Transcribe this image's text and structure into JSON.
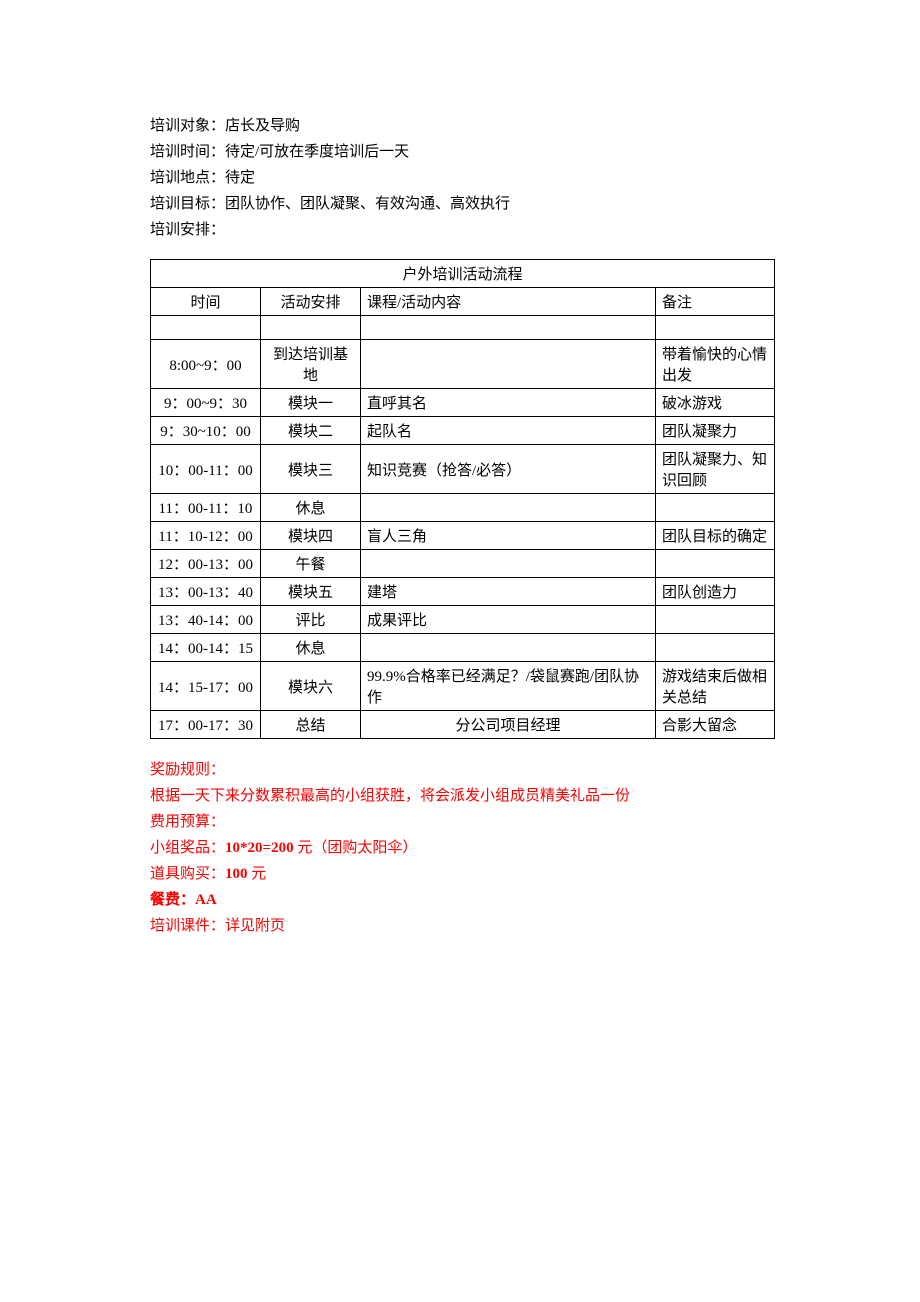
{
  "info": {
    "target_label": "培训对象：",
    "target_value": "店长及导购",
    "time_label": "培训时间：",
    "time_value": "待定/可放在季度培训后一天",
    "location_label": "培训地点：",
    "location_value": "待定",
    "goal_label": "培训目标：",
    "goal_value": "团队协作、团队凝聚、有效沟通、高效执行",
    "schedule_label": "培训安排："
  },
  "table": {
    "title": "户外培训活动流程",
    "headers": {
      "time": "时间",
      "activity": "活动安排",
      "content": "课程/活动内容",
      "remark": "备注"
    },
    "rows": [
      {
        "time": "8:00~9：00",
        "activity": "到达培训基地",
        "content": "",
        "remark": "带着愉快的心情出发"
      },
      {
        "time": "9：00~9：30",
        "activity": "模块一",
        "content": "直呼其名",
        "remark": "破冰游戏"
      },
      {
        "time": "9：30~10：00",
        "activity": "模块二",
        "content": "起队名",
        "remark": "团队凝聚力"
      },
      {
        "time": "10：00-11：00",
        "activity": "模块三",
        "content": "知识竞赛（抢答/必答）",
        "remark": "团队凝聚力、知识回顾"
      },
      {
        "time": "11：00-11：10",
        "activity": "休息",
        "content": "",
        "remark": ""
      },
      {
        "time": "11：10-12：00",
        "activity": "模块四",
        "content": "盲人三角",
        "remark": "团队目标的确定"
      },
      {
        "time": "12：00-13：00",
        "activity": "午餐",
        "content": "",
        "remark": ""
      },
      {
        "time": "13：00-13：40",
        "activity": "模块五",
        "content": "建塔",
        "remark": "团队创造力"
      },
      {
        "time": "13：40-14：00",
        "activity": "评比",
        "content": "成果评比",
        "remark": ""
      },
      {
        "time": "14：00-14：15",
        "activity": "休息",
        "content": "",
        "remark": ""
      },
      {
        "time": "14：15-17：00",
        "activity": "模块六",
        "content": "99.9%合格率已经满足？/袋鼠赛跑/团队协作",
        "remark": "游戏结束后做相关总结"
      },
      {
        "time": "17：00-17：30",
        "activity": "总结",
        "content": "分公司项目经理",
        "content_center": true,
        "remark": "合影大留念"
      }
    ]
  },
  "footer": {
    "reward_label": "奖励规则：",
    "reward_text": "根据一天下来分数累积最高的小组获胜，将会派发小组成员精美礼品一份",
    "budget_label": "费用预算：",
    "prize_label": "小组奖品：",
    "prize_value": "10*20=200",
    "prize_suffix": " 元（团购太阳伞）",
    "props_label": "道具购买：",
    "props_value": "100",
    "props_suffix": " 元",
    "meal_label": "餐费：",
    "meal_value": "AA",
    "courseware_label": "培训课件：",
    "courseware_value": "详见附页"
  }
}
